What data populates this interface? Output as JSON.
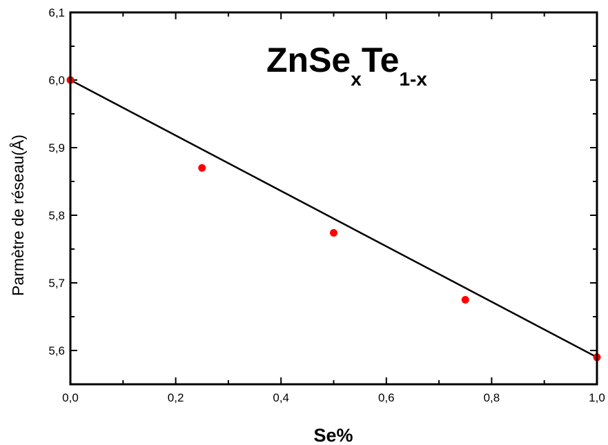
{
  "chart_data": {
    "type": "scatter",
    "title": {
      "base": "ZnSe",
      "sub1": "x",
      "mid": "Te",
      "sub2": "1-x"
    },
    "xlabel": "Se%",
    "ylabel": "Parmètre de réseau(Å)",
    "xlim": [
      0.0,
      1.0
    ],
    "ylim": [
      5.55,
      6.1
    ],
    "xticks": [
      "0,0",
      "0,2",
      "0,4",
      "0,6",
      "0,8",
      "1,0"
    ],
    "xtick_values": [
      0.0,
      0.2,
      0.4,
      0.6,
      0.8,
      1.0
    ],
    "yticks": [
      "5,6",
      "5,7",
      "5,8",
      "5,9",
      "6,0",
      "6,1"
    ],
    "ytick_values": [
      5.6,
      5.7,
      5.8,
      5.9,
      6.0,
      6.1
    ],
    "x_minor_step": 0.1,
    "y_minor_step": 0.05,
    "grid": false,
    "series": [
      {
        "kind": "points",
        "color": "#ff0000",
        "x": [
          0.0,
          0.25,
          0.5,
          0.75,
          1.0
        ],
        "y": [
          6.0,
          5.87,
          5.774,
          5.675,
          5.59
        ]
      },
      {
        "kind": "fit-line",
        "color": "#000000",
        "x": [
          0.0,
          1.0
        ],
        "y": [
          6.0,
          5.59
        ]
      }
    ]
  }
}
